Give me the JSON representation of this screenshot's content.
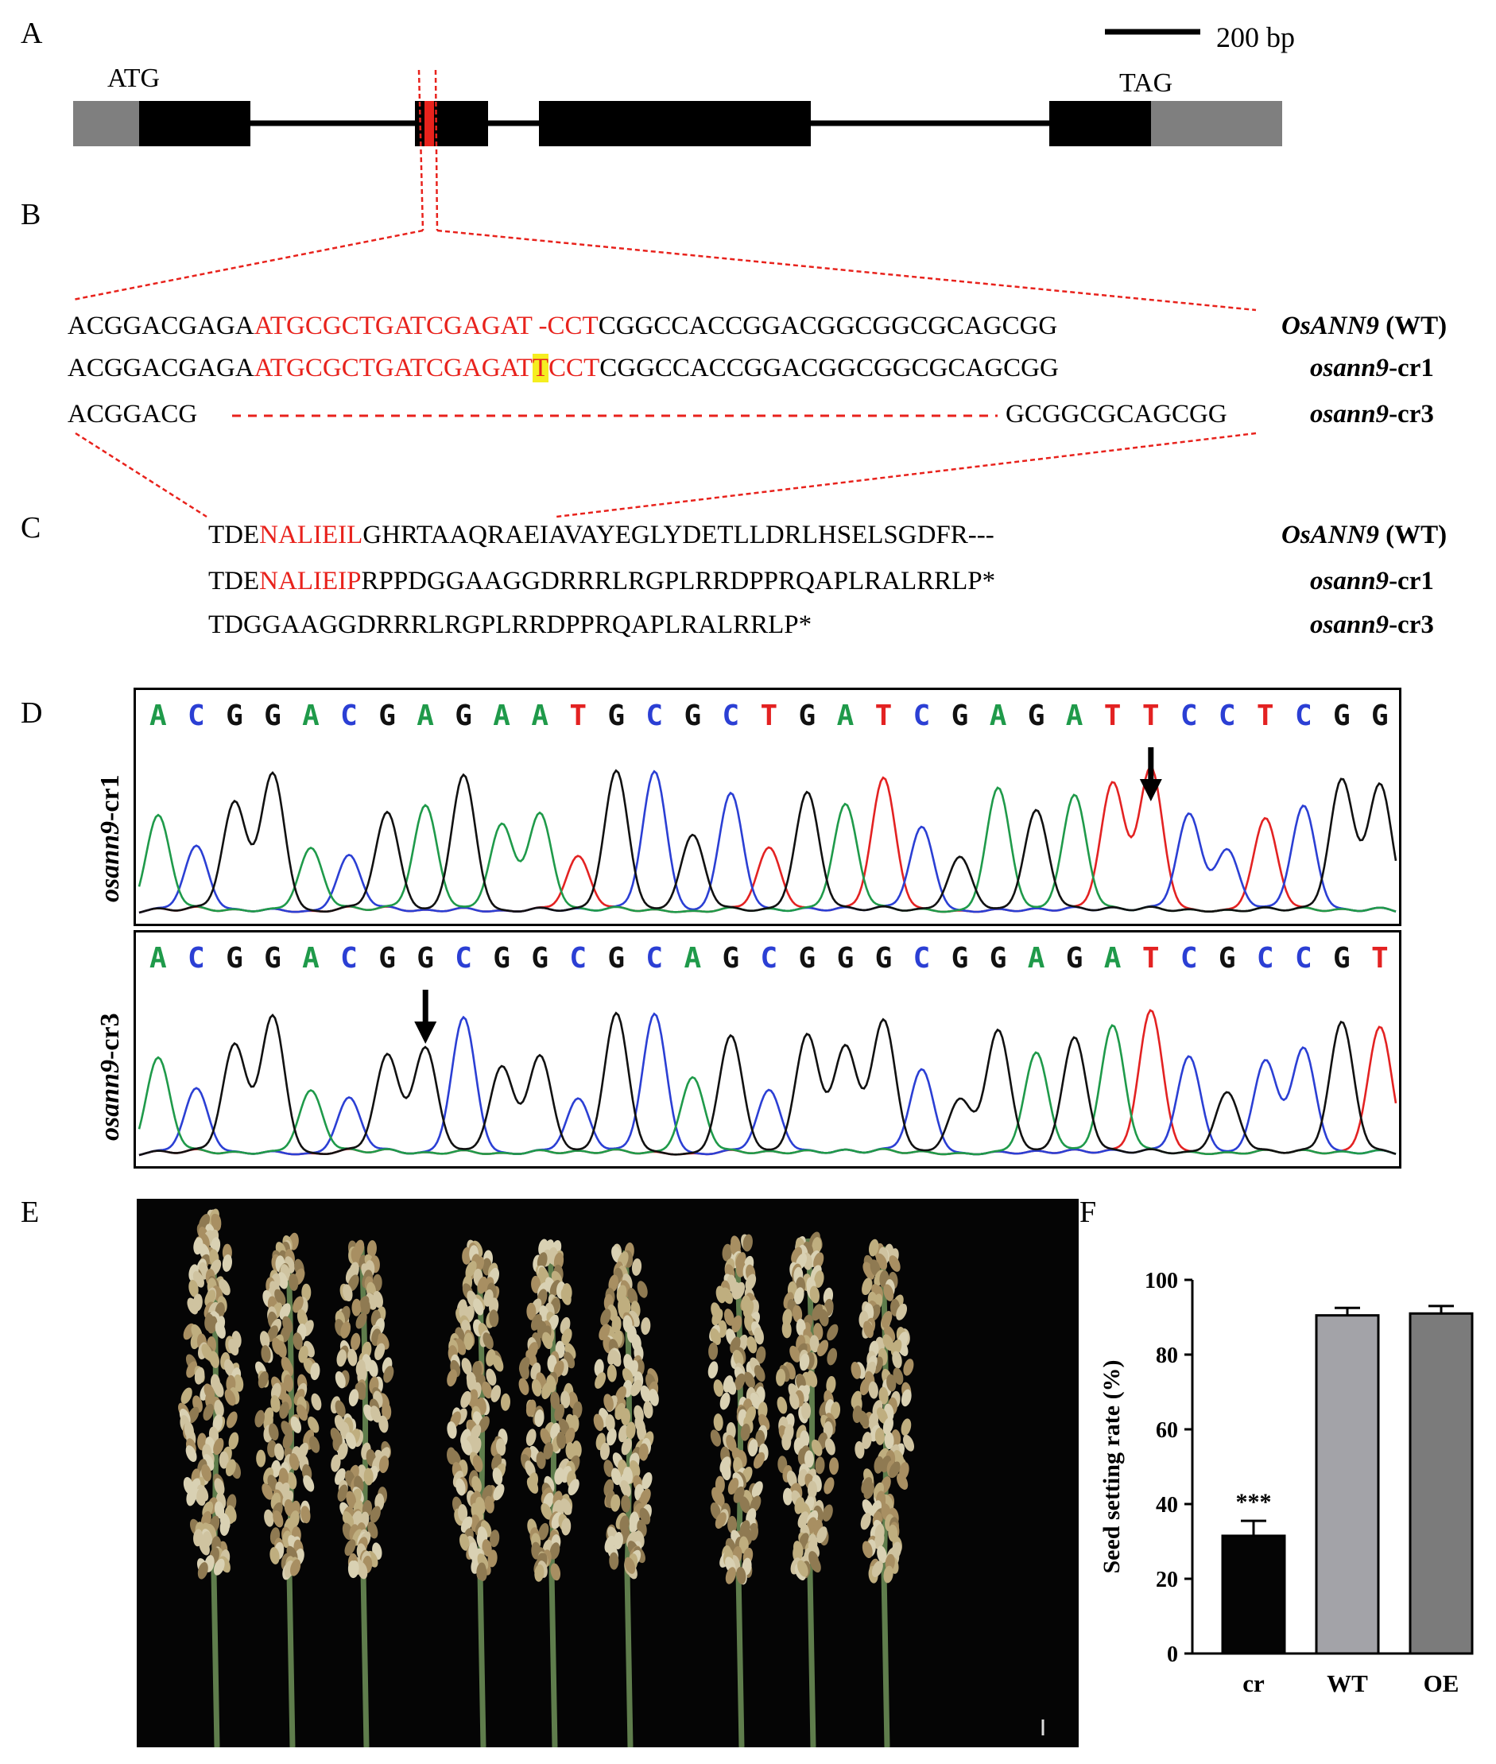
{
  "panels": {
    "a": "A",
    "b": "B",
    "c": "C",
    "d": "D",
    "e": "E",
    "f": "F"
  },
  "gene_structure": {
    "scale_label": "200 bp",
    "start_codon": "ATG",
    "stop_codon": "TAG"
  },
  "dna_alignment": {
    "rows": [
      {
        "pre": "ACGGACGAGA",
        "target": "ATGCGCTGATCGAGAT -CCT",
        "post": "CGGCCACCGGACGGCGGCGCAGCGG",
        "name_it": "OsANN9",
        "name_rest": " (WT)"
      },
      {
        "pre": "ACGGACGAGA",
        "target_a": "ATGCGCTGATCGAGAT",
        "ins": "T",
        "target_b": "CCT",
        "post": "CGGCCACCGGACGGCGGCGCAGCGG",
        "name_it": "osann9",
        "name_rest": "-cr1"
      },
      {
        "pre": "ACGGACG",
        "post": "GCGGCGCAGCGG",
        "name_it": "osann9",
        "name_rest": "-cr3"
      }
    ]
  },
  "protein_alignment": {
    "rows": [
      {
        "pre": "TDE",
        "red": "NALIEIL",
        "post": "GHRTAAQRAEIAVAYEGLYDETLLDRLHSELSGDFR---",
        "name_it": "OsANN9",
        "name_rest": " (WT)"
      },
      {
        "pre": "TDE",
        "red": "NALIEIP",
        "post": "RPPDGGAAGGDRRRLRGPLRRDPPRQAPLRALRRLP*",
        "name_it": "osann9",
        "name_rest": "-cr1"
      },
      {
        "pre": "TDGGAAGGDRRRLRGPLRRDPPRQAPLRALRRLP*",
        "red": "",
        "post": "",
        "name_it": "osann9",
        "name_rest": "-cr3"
      }
    ]
  },
  "chromatograms": {
    "cr1": {
      "label_it": "osann9",
      "label_rest": "-cr1",
      "sequence": "ACGGACGAGAATGCGCTGATCGAGATTCCTCGG"
    },
    "cr3": {
      "label_it": "osann9",
      "label_rest": "-cr3",
      "sequence": "ACGGACGGCGGCGCAGCGGGCGGAGATCGCCGT"
    },
    "colors": {
      "A": "#1f9a4a",
      "C": "#2b3fd4",
      "G": "#111111",
      "T": "#e32222"
    }
  },
  "chart_data": {
    "type": "bar",
    "categories": [
      "cr",
      "WT",
      "OE"
    ],
    "values": [
      31.5,
      90.5,
      91
    ],
    "errors": [
      4,
      2,
      2
    ],
    "colors": [
      "#050505",
      "#a3a3a8",
      "#7b7b7b"
    ],
    "ylabel": "Seed setting rate (%)",
    "xlabel": "",
    "title": "",
    "ylim": [
      0,
      100
    ],
    "yticks": [
      0,
      20,
      40,
      60,
      80,
      100
    ],
    "annotations": [
      {
        "category": "cr",
        "text": "***"
      }
    ],
    "grid": false,
    "legend": "none"
  }
}
